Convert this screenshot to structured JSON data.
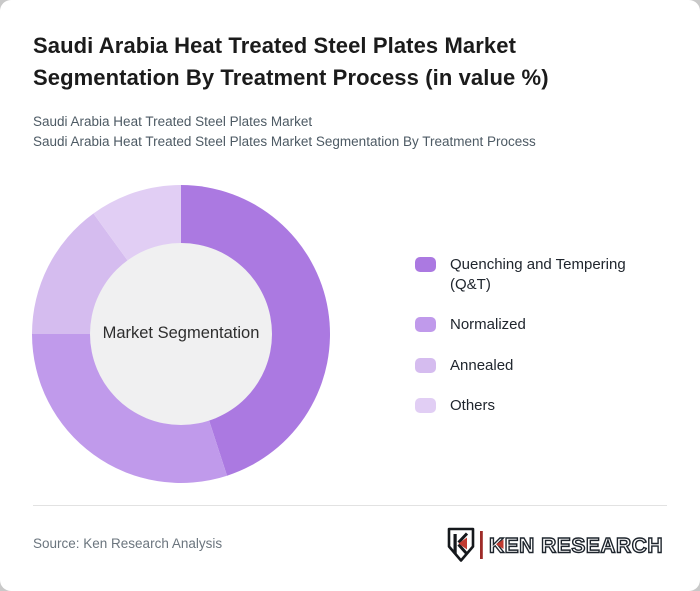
{
  "header": {
    "title": "Saudi Arabia Heat Treated Steel Plates Market Segmentation By Treatment Process (in value %)",
    "subtitle_line1": "Saudi Arabia Heat Treated Steel Plates Market",
    "subtitle_line2": "Saudi Arabia Heat Treated Steel Plates Market Segmentation By Treatment Process"
  },
  "chart_data": {
    "type": "pie",
    "variant": "donut",
    "title": "Saudi Arabia Heat Treated Steel Plates Market Segmentation By Treatment Process (in value %)",
    "center_label": "Market Segmentation",
    "segments": [
      {
        "label": "Quenching and Tempering (Q&T)",
        "value": 45,
        "color": "#ab79e1"
      },
      {
        "label": "Normalized",
        "value": 30,
        "color": "#c09aeb"
      },
      {
        "label": "Annealed",
        "value": 15,
        "color": "#d5bcef"
      },
      {
        "label": "Others",
        "value": 10,
        "color": "#e1cef4"
      }
    ],
    "start_angle_deg": 0,
    "direction": "clockwise",
    "inner_radius_ratio": 0.61,
    "inner_circle_color": "#f0f0f1",
    "legend_position": "right",
    "values_shown_on_chart": false
  },
  "footer": {
    "source": "Source: Ken Research Analysis",
    "logo": {
      "monogram": "K",
      "brand": "KEN RESEARCH",
      "text_color": "#1d242c",
      "accent_red": "#c13a30"
    }
  }
}
